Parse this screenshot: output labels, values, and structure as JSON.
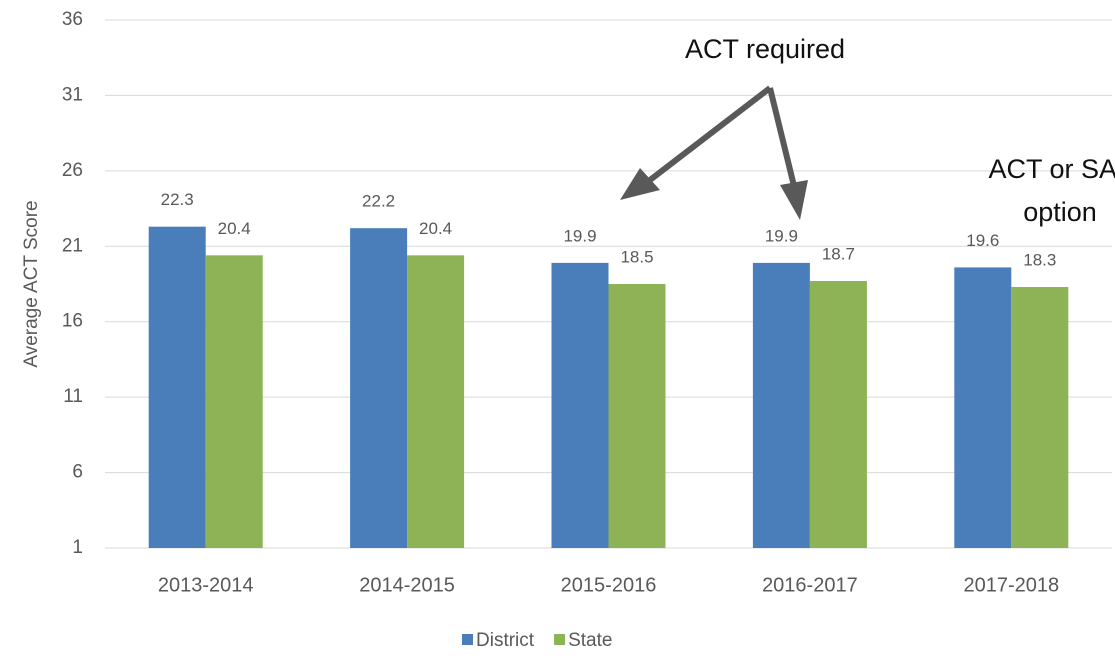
{
  "chart_data": {
    "type": "bar",
    "y_label": "Average ACT Score",
    "categories": [
      "2013-2014",
      "2014-2015",
      "2015-2016",
      "2016-2017",
      "2017-2018"
    ],
    "series": [
      {
        "name": "District",
        "color": "#4a7ebb",
        "values": [
          22.3,
          22.2,
          19.9,
          19.9,
          19.6
        ]
      },
      {
        "name": "State",
        "color": "#8db356",
        "values": [
          20.4,
          20.4,
          18.5,
          18.7,
          18.3
        ]
      }
    ],
    "ylim": [
      1,
      36
    ],
    "yticks": [
      1,
      6,
      11,
      16,
      21,
      26,
      31,
      36
    ],
    "grid": true,
    "legend": "bottom",
    "annotations": [
      {
        "text": "ACT required"
      },
      {
        "text": "ACT or SAT option"
      }
    ]
  }
}
